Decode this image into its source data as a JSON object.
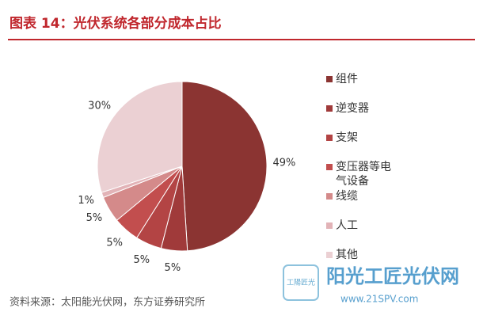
{
  "chart_data": {
    "type": "pie",
    "title": "图表 14：光伏系统各部分成本占比",
    "categories": [
      "组件",
      "逆变器",
      "支架",
      "变压器等电气设备",
      "线缆",
      "人工",
      "其他"
    ],
    "values": [
      49,
      5,
      5,
      5,
      5,
      1,
      30
    ],
    "value_labels": [
      "49%",
      "5%",
      "5%",
      "5%",
      "5%",
      "1%",
      "30%"
    ],
    "colors": [
      "#8b3432",
      "#a03a3a",
      "#b34444",
      "#c24e4e",
      "#d48a8a",
      "#e2b3b7",
      "#ebd0d3"
    ],
    "legend": "right",
    "source": "资料来源：太阳能光伏网，东方证券研究所"
  },
  "watermark": {
    "name": "阳光工匠光伏网",
    "url": "www.21SPV.com",
    "logo": "工陽匠光"
  }
}
